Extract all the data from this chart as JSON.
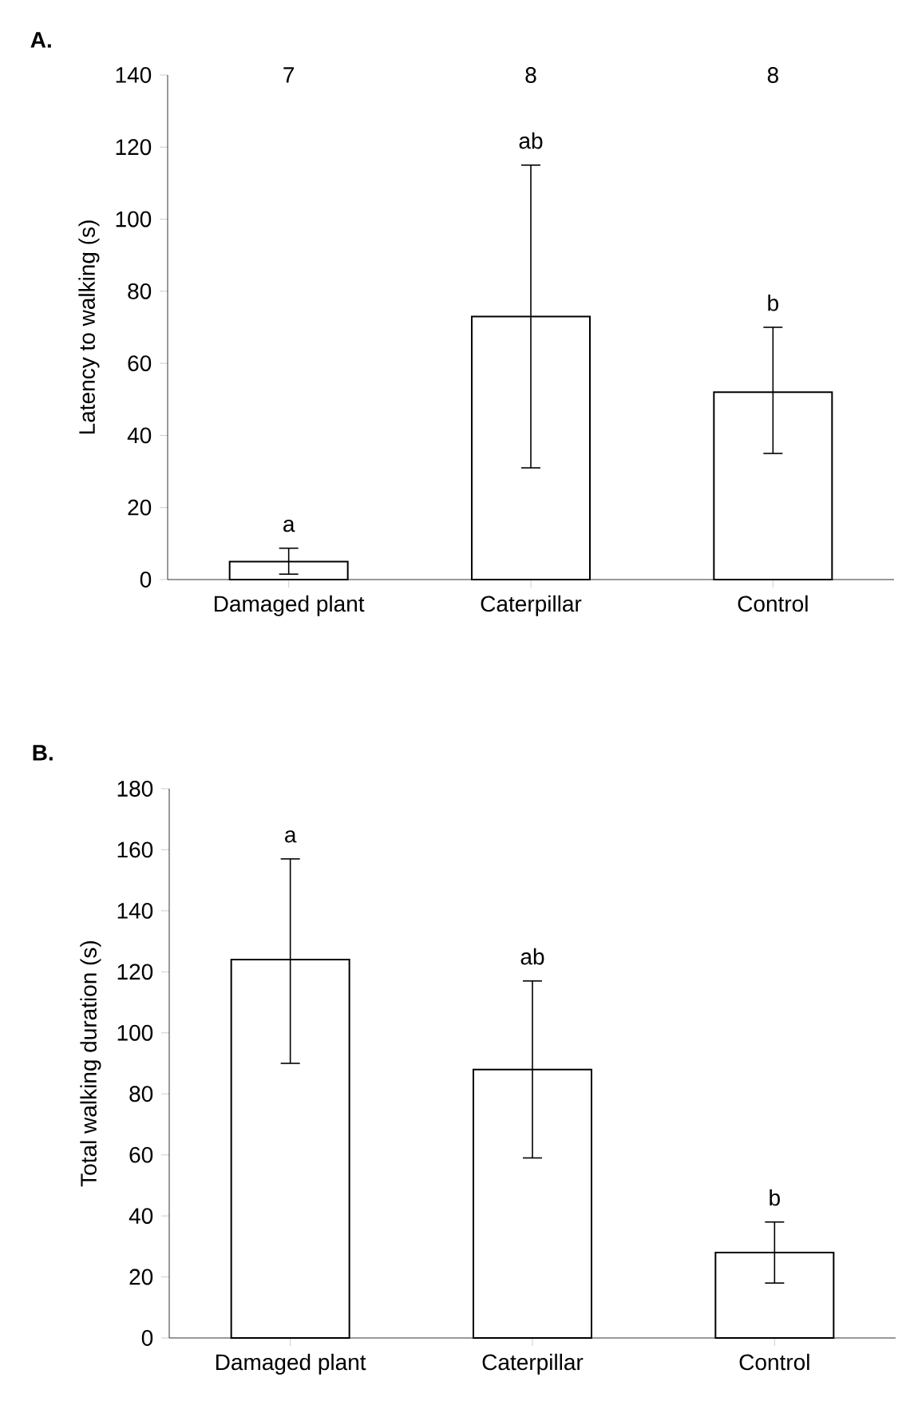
{
  "chart_data": [
    {
      "type": "bar",
      "title": "A.",
      "ylabel": "Latency to walking (s)",
      "categories": [
        "Damaged plant",
        "Caterpillar",
        "Control"
      ],
      "values": [
        5,
        73,
        52
      ],
      "color": "#ffffff",
      "errors": [
        [
          1.5,
          8.7
        ],
        [
          31,
          115
        ],
        [
          35,
          70
        ]
      ],
      "ylim": [
        0,
        140
      ],
      "yticks": [
        0,
        20,
        40,
        60,
        80,
        100,
        120,
        140
      ],
      "annotations": [
        "7",
        "8",
        "8",
        "a",
        "ab",
        "b"
      ]
    },
    {
      "type": "bar",
      "title": "B.",
      "ylabel": "Total walking duration (s)",
      "categories": [
        "Damaged plant",
        "Caterpillar",
        "Control"
      ],
      "values": [
        124,
        88,
        28
      ],
      "color": "#ffffff",
      "errors": [
        [
          90,
          157
        ],
        [
          59,
          117
        ],
        [
          18,
          38
        ]
      ],
      "ylim": [
        0,
        180
      ],
      "yticks": [
        0,
        20,
        40,
        60,
        80,
        100,
        120,
        140,
        160,
        180
      ],
      "annotations": [
        "a",
        "ab",
        "b"
      ]
    }
  ]
}
